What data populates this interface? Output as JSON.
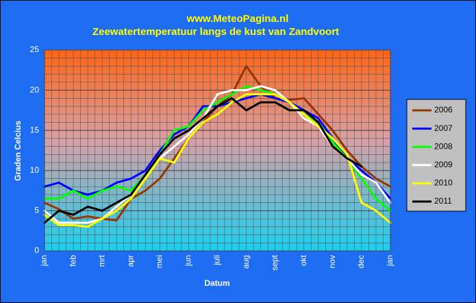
{
  "chart_data": {
    "type": "line",
    "title": "www.MeteoPagina.nl",
    "subtitle": "Zeewatertemperatuur langs de kust van Zandvoort",
    "x_label": "Datum",
    "y_label": "Graden Celcius",
    "categories": [
      "jan",
      null,
      "feb",
      null,
      "mrt",
      null,
      "apr",
      null,
      "mei",
      null,
      "jun",
      null,
      "juli",
      null,
      "aug",
      null,
      "sept",
      null,
      "okt",
      null,
      "nov",
      null,
      "dec",
      null,
      "jan"
    ],
    "ylim": [
      0,
      25
    ],
    "yticks": [
      0,
      5,
      10,
      15,
      20,
      25
    ],
    "grid": true,
    "series": [
      {
        "name": "2006",
        "color": "#993300",
        "values": [
          6,
          5.2,
          4,
          4.3,
          4,
          3.8,
          6.5,
          7.5,
          9,
          11.5,
          14,
          16,
          18,
          19.5,
          23,
          20.5,
          19,
          18.8,
          19,
          17,
          15,
          12.5,
          10.5,
          9,
          8
        ]
      },
      {
        "name": "2007",
        "color": "#0000ff",
        "values": [
          8,
          8.5,
          7.5,
          7,
          7.5,
          8.5,
          9,
          10,
          12.5,
          14.5,
          15.5,
          18,
          18,
          18.5,
          19,
          19.5,
          19,
          18.5,
          17.5,
          16.5,
          14,
          11.5,
          10,
          8.5,
          6.5
        ]
      },
      {
        "name": "2008",
        "color": "#00ff00",
        "values": [
          6.5,
          6.5,
          7.5,
          6.5,
          7.5,
          8,
          7.5,
          9.5,
          12,
          15,
          15.5,
          17.5,
          18.5,
          19.5,
          20.5,
          20,
          19.5,
          18.5,
          17,
          16,
          13.5,
          11.5,
          9,
          6.5,
          5
        ]
      },
      {
        "name": "2009",
        "color": "#ffffff",
        "values": [
          5,
          3.5,
          3.5,
          3.5,
          4,
          5.5,
          7,
          9,
          11.5,
          13,
          14.5,
          16.5,
          19.5,
          20,
          20,
          20.5,
          20,
          18.5,
          16.5,
          15.5,
          13,
          11.5,
          9.5,
          8.5,
          6
        ]
      },
      {
        "name": "2010",
        "color": "#ffff00",
        "values": [
          4.5,
          3.2,
          3.2,
          3,
          4,
          5,
          6.5,
          9,
          11.5,
          11,
          14,
          16,
          17,
          18.5,
          19.5,
          19.5,
          19.5,
          18.5,
          17,
          15.5,
          14,
          12,
          6,
          5,
          3.5
        ]
      },
      {
        "name": "2011",
        "color": "#000000",
        "values": [
          3.5,
          5,
          4.5,
          5.5,
          5,
          6,
          7,
          9.5,
          12,
          14,
          15,
          16.5,
          18,
          19,
          17.5,
          18.5,
          18.5,
          17.5,
          17.5,
          16,
          13,
          11.5,
          10.5,
          null,
          null
        ]
      }
    ]
  }
}
